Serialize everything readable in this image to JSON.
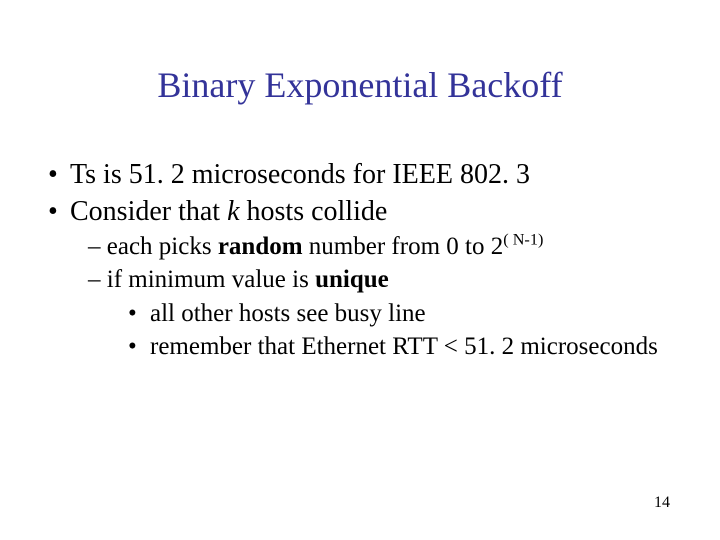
{
  "title": "Binary Exponential Backoff",
  "bullet_l1": "•",
  "bullet_l3": "•",
  "dash": "– ",
  "b1_a": "Ts is 51. 2 microseconds for IEEE 802. 3",
  "b2_a": "Consider that ",
  "b2_k": "k",
  "b2_b": " hosts collide",
  "s1_a": "each picks ",
  "s1_rand": "random",
  "s1_b": " number from 0 to 2",
  "s1_exp": "( N-1)",
  "s2_a": "if minimum value is ",
  "s2_uni": "unique",
  "s3": "all other hosts see busy line",
  "s4": "remember that Ethernet RTT < 51. 2 microseconds",
  "pagenum": "14",
  "colors": {
    "title": "#333399",
    "text": "#000000",
    "background": "#ffffff"
  },
  "fonts": {
    "title_size": 36,
    "l1_size": 28,
    "l2_size": 25,
    "pagenum_size": 16,
    "family": "Times New Roman"
  }
}
